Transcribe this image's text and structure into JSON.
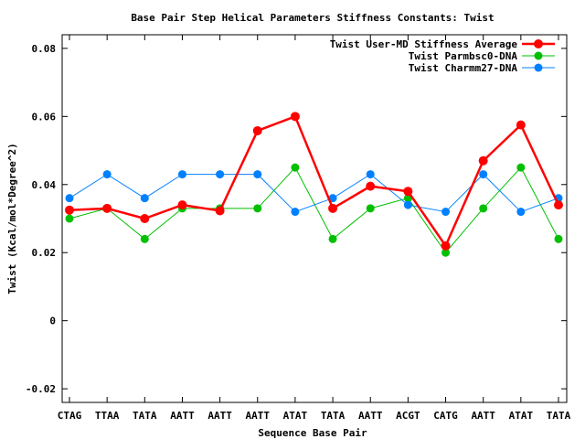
{
  "chart_data": {
    "type": "line",
    "title": "Base Pair Step Helical Parameters Stiffness Constants: Twist",
    "xlabel": "Sequence Base Pair",
    "ylabel": "Twist (Kcal/mol*Degree^2)",
    "ylim": [
      -0.024,
      0.084
    ],
    "yticks": [
      -0.02,
      0,
      0.02,
      0.04,
      0.06,
      0.08
    ],
    "ytick_labels": [
      "-0.02",
      "0",
      "0.02",
      "0.04",
      "0.06",
      "0.08"
    ],
    "categories": [
      "CTAG",
      "TTAA",
      "TATA",
      "AATT",
      "AATT",
      "AATT",
      "ATAT",
      "TATA",
      "AATT",
      "ACGT",
      "CATG",
      "AATT",
      "ATAT",
      "TATA"
    ],
    "grid": false,
    "legend_position": "top-right",
    "series": [
      {
        "name": "Twist User-MD Stiffness Average",
        "color": "#ff0000",
        "emphasis": true,
        "values": [
          0.0325,
          0.033,
          0.03,
          0.034,
          0.0323,
          0.0558,
          0.06,
          0.033,
          0.0395,
          0.038,
          0.022,
          0.047,
          0.0575,
          0.034
        ]
      },
      {
        "name": "Twist Parmbsc0-DNA",
        "color": "#00c000",
        "emphasis": false,
        "values": [
          0.03,
          0.033,
          0.024,
          0.033,
          0.033,
          0.033,
          0.045,
          0.024,
          0.033,
          0.036,
          0.02,
          0.033,
          0.045,
          0.024
        ]
      },
      {
        "name": "Twist Charmm27-DNA",
        "color": "#0080ff",
        "emphasis": false,
        "values": [
          0.036,
          0.043,
          0.036,
          0.043,
          0.043,
          0.043,
          0.032,
          0.036,
          0.043,
          0.034,
          0.032,
          0.043,
          0.032,
          0.036
        ]
      }
    ]
  }
}
